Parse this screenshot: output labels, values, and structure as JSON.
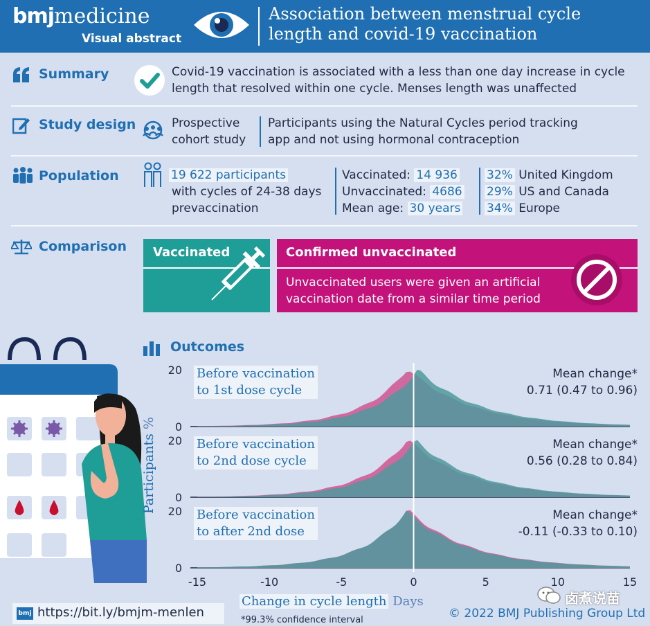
{
  "header": {
    "brand_bold": "bmj",
    "brand_rest": "medicine",
    "subtitle": "Visual abstract",
    "title_line1": "Association between menstrual cycle",
    "title_line2": "length and covid-19 vaccination",
    "eye_icon": "eye-icon"
  },
  "summary": {
    "label": "Summary",
    "icon": "quote-icon",
    "check_icon": "check-icon",
    "line1": "Covid-19 vaccination is associated with a less than one day increase in cycle",
    "line2": "length that resolved within one cycle. Menses length was unaffected"
  },
  "study_design": {
    "label": "Study design",
    "icon": "pencil-icon",
    "people_icon": "group-icon",
    "type_line1": "Prospective",
    "type_line2": "cohort study",
    "desc_line1": "Participants using the Natural Cycles period tracking",
    "desc_line2": "app and not using hormonal contraception"
  },
  "population": {
    "label": "Population",
    "icon": "people-icon",
    "participants_icon": "participants-icon",
    "participants": "19 622 participants",
    "line2": "with cycles of 24-38 days",
    "line3": "prevaccination",
    "vaccinated_label": "Vaccinated:",
    "vaccinated_value": "14 936",
    "unvaccinated_label": "Unvaccinated:",
    "unvaccinated_value": "4686",
    "mean_age_label": "Mean age:",
    "mean_age_value": "30 years",
    "regions": [
      {
        "pct": "32%",
        "name": "United Kingdom"
      },
      {
        "pct": "29%",
        "name": "US and Canada"
      },
      {
        "pct": "34%",
        "name": "Europe"
      }
    ]
  },
  "comparison": {
    "label": "Comparison",
    "icon": "scales-icon",
    "vaccinated_title": "Vaccinated",
    "syringe_icon": "syringe-icon",
    "unvaccinated_title": "Confirmed unvaccinated",
    "unvaccinated_line1": "Unvaccinated users were given an artificial",
    "unvaccinated_line2": "vaccination date from a similar time period",
    "no_icon": "prohibited-icon",
    "colors": {
      "teal": "#1f9e97",
      "magenta": "#c3127a"
    }
  },
  "outcomes": {
    "label": "Outcomes",
    "icon": "bar-chart-icon",
    "calendar_icon": "calendar-illustration",
    "woman_icon": "woman-illustration"
  },
  "chart_data": {
    "type": "area",
    "xlabel": "Change in cycle length",
    "xunit": "Days",
    "ylabel": "Participants",
    "yunit": "%",
    "xlim": [
      -15,
      15
    ],
    "xticks": [
      "-15",
      "-10",
      "-5",
      "0",
      "5",
      "10",
      "15"
    ],
    "ylim": [
      0,
      20
    ],
    "yticks": [
      "0",
      "20"
    ],
    "panels": [
      {
        "label_line1": "Before vaccination",
        "label_line2": "to 1st dose cycle",
        "mean_label": "Mean change*",
        "mean_value": "0.71 (0.47 to 0.96)",
        "shift": 0.71
      },
      {
        "label_line1": "Before vaccination",
        "label_line2": "to 2nd dose cycle",
        "mean_label": "Mean change*",
        "mean_value": "0.56 (0.28 to 0.84)",
        "shift": 0.56
      },
      {
        "label_line1": "Before vaccination",
        "label_line2": "to after 2nd dose",
        "mean_label": "Mean change*",
        "mean_value": "-0.11 (-0.33 to 0.10)",
        "shift": -0.11
      }
    ]
  },
  "footer": {
    "link_icon": "bmj-logo-icon",
    "url": "https://bit.ly/bmjm-menlen",
    "note": "*99.3% confidence interval",
    "copyright": "© 2022 BMJ Publishing Group Ltd",
    "watermark": "卤煮说苗",
    "watermark_icon": "wechat-icon"
  }
}
